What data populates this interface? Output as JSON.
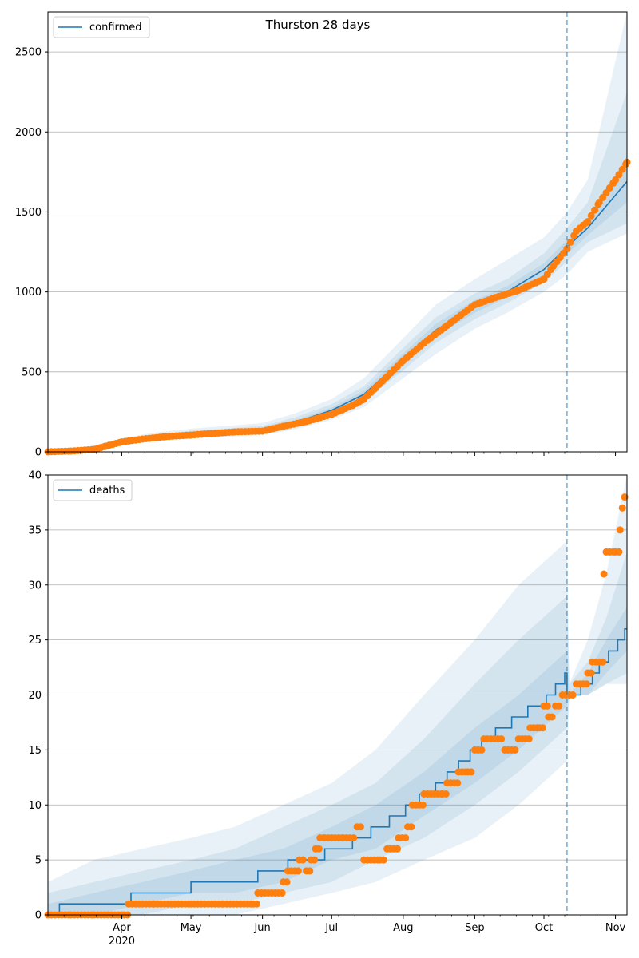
{
  "chart_data": [
    {
      "type": "line",
      "title": "Thurston 28 days",
      "legend": {
        "label": "confirmed",
        "placement": "top-left"
      },
      "xlim": [
        "2020-02-29",
        "2020-11-06"
      ],
      "ylim": [
        0,
        2750
      ],
      "yticks": [
        0,
        500,
        1000,
        1500,
        2000,
        2500
      ],
      "grid": "horizontal",
      "forecast_start": "2020-10-11",
      "colors": {
        "model": "#1f77b4",
        "observed": "#ff7f0e",
        "band": "#1f77b4"
      },
      "model": {
        "x": [
          "2020-02-29",
          "2020-03-15",
          "2020-04-01",
          "2020-04-15",
          "2020-05-01",
          "2020-05-15",
          "2020-06-01",
          "2020-06-15",
          "2020-07-01",
          "2020-07-15",
          "2020-08-01",
          "2020-08-15",
          "2020-09-01",
          "2020-09-15",
          "2020-10-01",
          "2020-10-11",
          "2020-10-20",
          "2020-11-06"
        ],
        "y": [
          0,
          10,
          60,
          95,
          115,
          125,
          140,
          185,
          260,
          360,
          580,
          760,
          910,
          1000,
          1140,
          1280,
          1400,
          1690
        ]
      },
      "bands": [
        {
          "x": [
            "2020-02-29",
            "2020-03-15",
            "2020-04-01",
            "2020-04-15",
            "2020-05-01",
            "2020-05-15",
            "2020-06-01",
            "2020-06-15",
            "2020-07-01",
            "2020-07-15",
            "2020-08-01",
            "2020-08-15",
            "2020-09-01",
            "2020-09-15",
            "2020-10-01",
            "2020-10-11",
            "2020-10-20",
            "2020-11-06"
          ],
          "lower": [
            0,
            2,
            40,
            70,
            90,
            95,
            105,
            140,
            200,
            280,
            460,
            610,
            770,
            870,
            1000,
            1110,
            1250,
            1365
          ],
          "upper": [
            0,
            25,
            85,
            120,
            145,
            160,
            180,
            240,
            330,
            460,
            710,
            920,
            1080,
            1200,
            1340,
            1500,
            1700,
            2750
          ]
        },
        {
          "x": [
            "2020-02-29",
            "2020-03-15",
            "2020-04-01",
            "2020-04-15",
            "2020-05-01",
            "2020-05-15",
            "2020-06-01",
            "2020-06-15",
            "2020-07-01",
            "2020-07-15",
            "2020-08-01",
            "2020-08-15",
            "2020-09-01",
            "2020-09-15",
            "2020-10-01",
            "2020-10-11",
            "2020-10-20",
            "2020-11-06"
          ],
          "lower": [
            0,
            5,
            48,
            80,
            100,
            107,
            120,
            158,
            225,
            315,
            510,
            680,
            830,
            930,
            1060,
            1190,
            1310,
            1430
          ],
          "upper": [
            0,
            18,
            75,
            110,
            132,
            145,
            162,
            215,
            298,
            410,
            650,
            840,
            990,
            1080,
            1240,
            1400,
            1560,
            2250
          ]
        },
        {
          "x": [
            "2020-02-29",
            "2020-03-15",
            "2020-04-01",
            "2020-04-15",
            "2020-05-01",
            "2020-05-15",
            "2020-06-01",
            "2020-06-15",
            "2020-07-01",
            "2020-07-15",
            "2020-08-01",
            "2020-08-15",
            "2020-09-01",
            "2020-09-15",
            "2020-10-01",
            "2020-10-11",
            "2020-10-20",
            "2020-11-06"
          ],
          "lower": [
            0,
            7,
            54,
            87,
            108,
            116,
            130,
            172,
            243,
            337,
            545,
            720,
            870,
            965,
            1100,
            1235,
            1355,
            1560
          ],
          "upper": [
            0,
            13,
            66,
            102,
            122,
            134,
            150,
            198,
            277,
            383,
            615,
            800,
            950,
            1035,
            1180,
            1325,
            1445,
            1850
          ]
        }
      ],
      "observed": {
        "x": [
          "2020-02-29",
          "2020-03-10",
          "2020-03-20",
          "2020-03-25",
          "2020-04-01",
          "2020-04-10",
          "2020-04-20",
          "2020-05-01",
          "2020-05-10",
          "2020-05-20",
          "2020-06-01",
          "2020-06-10",
          "2020-06-20",
          "2020-07-01",
          "2020-07-10",
          "2020-07-15",
          "2020-07-20",
          "2020-07-25",
          "2020-08-01",
          "2020-08-10",
          "2020-08-20",
          "2020-09-01",
          "2020-09-10",
          "2020-09-20",
          "2020-10-01",
          "2020-10-05",
          "2020-10-11",
          "2020-10-15",
          "2020-10-20",
          "2020-10-25",
          "2020-11-01",
          "2020-11-06"
        ],
        "y": [
          0,
          5,
          15,
          35,
          62,
          80,
          95,
          105,
          115,
          125,
          130,
          160,
          190,
          235,
          290,
          330,
          400,
          470,
          570,
          680,
          790,
          920,
          965,
          1010,
          1080,
          1160,
          1270,
          1380,
          1440,
          1560,
          1700,
          1810
        ]
      }
    },
    {
      "type": "line",
      "title": "",
      "legend": {
        "label": "deaths",
        "placement": "top-left"
      },
      "xlim": [
        "2020-02-29",
        "2020-11-06"
      ],
      "ylim": [
        0,
        40
      ],
      "yticks": [
        0,
        5,
        10,
        15,
        20,
        25,
        30,
        35,
        40
      ],
      "grid": "horizontal",
      "forecast_start": "2020-10-11",
      "colors": {
        "model": "#1f77b4",
        "observed": "#ff7f0e",
        "band": "#1f77b4"
      },
      "xticks": [
        {
          "date": "2020-04-01",
          "label": "Apr",
          "sublabel": "2020"
        },
        {
          "date": "2020-05-01",
          "label": "May"
        },
        {
          "date": "2020-06-01",
          "label": "Jun"
        },
        {
          "date": "2020-07-01",
          "label": "Jul"
        },
        {
          "date": "2020-08-01",
          "label": "Aug"
        },
        {
          "date": "2020-09-01",
          "label": "Sep"
        },
        {
          "date": "2020-10-01",
          "label": "Oct"
        },
        {
          "date": "2020-11-01",
          "label": "Nov"
        }
      ],
      "model_steps": [
        {
          "x": "2020-02-29",
          "y": 0
        },
        {
          "x": "2020-03-05",
          "y": 1
        },
        {
          "x": "2020-04-05",
          "y": 2
        },
        {
          "x": "2020-05-01",
          "y": 3
        },
        {
          "x": "2020-05-30",
          "y": 4
        },
        {
          "x": "2020-06-12",
          "y": 5
        },
        {
          "x": "2020-06-28",
          "y": 6
        },
        {
          "x": "2020-07-10",
          "y": 7
        },
        {
          "x": "2020-07-18",
          "y": 8
        },
        {
          "x": "2020-07-26",
          "y": 9
        },
        {
          "x": "2020-08-02",
          "y": 10
        },
        {
          "x": "2020-08-08",
          "y": 11
        },
        {
          "x": "2020-08-15",
          "y": 12
        },
        {
          "x": "2020-08-20",
          "y": 13
        },
        {
          "x": "2020-08-25",
          "y": 14
        },
        {
          "x": "2020-08-30",
          "y": 15
        },
        {
          "x": "2020-09-04",
          "y": 16
        },
        {
          "x": "2020-09-10",
          "y": 17
        },
        {
          "x": "2020-09-17",
          "y": 18
        },
        {
          "x": "2020-09-24",
          "y": 19
        },
        {
          "x": "2020-10-02",
          "y": 20
        },
        {
          "x": "2020-10-06",
          "y": 21
        },
        {
          "x": "2020-10-10",
          "y": 22
        },
        {
          "x": "2020-10-11",
          "y": 20
        },
        {
          "x": "2020-10-17",
          "y": 21
        },
        {
          "x": "2020-10-22",
          "y": 22
        },
        {
          "x": "2020-10-25",
          "y": 23
        },
        {
          "x": "2020-10-29",
          "y": 24
        },
        {
          "x": "2020-11-02",
          "y": 25
        },
        {
          "x": "2020-11-05",
          "y": 26
        },
        {
          "x": "2020-11-06",
          "y": 26
        }
      ],
      "bands": [
        {
          "x": [
            "2020-02-29",
            "2020-03-20",
            "2020-04-10",
            "2020-05-01",
            "2020-05-20",
            "2020-06-10",
            "2020-07-01",
            "2020-07-20",
            "2020-08-10",
            "2020-09-01",
            "2020-09-20",
            "2020-10-11",
            "2020-10-12",
            "2020-10-20",
            "2020-10-28",
            "2020-11-06"
          ],
          "lower": [
            0,
            0,
            0,
            0,
            0,
            1,
            2,
            3,
            5,
            7,
            10,
            14,
            20,
            20,
            21,
            21
          ],
          "upper": [
            3,
            5,
            6,
            7,
            8,
            10,
            12,
            15,
            20,
            25,
            30,
            34,
            21,
            25,
            31,
            40
          ]
        },
        {
          "x": [
            "2020-02-29",
            "2020-03-20",
            "2020-04-10",
            "2020-05-01",
            "2020-05-20",
            "2020-06-10",
            "2020-07-01",
            "2020-07-20",
            "2020-08-10",
            "2020-09-01",
            "2020-09-20",
            "2020-10-11",
            "2020-10-12",
            "2020-10-20",
            "2020-10-28",
            "2020-11-06"
          ],
          "lower": [
            0,
            0,
            0,
            1,
            1,
            2,
            3,
            5,
            7,
            10,
            13,
            17,
            20,
            20,
            21,
            22
          ],
          "upper": [
            2,
            3,
            4,
            5,
            6,
            8,
            10,
            12,
            16,
            21,
            25,
            29,
            21,
            23,
            27,
            33
          ]
        },
        {
          "x": [
            "2020-02-29",
            "2020-03-20",
            "2020-04-10",
            "2020-05-01",
            "2020-05-20",
            "2020-06-10",
            "2020-07-01",
            "2020-07-20",
            "2020-08-10",
            "2020-09-01",
            "2020-09-20",
            "2020-10-11",
            "2020-10-12",
            "2020-10-20",
            "2020-10-28",
            "2020-11-06"
          ],
          "lower": [
            0,
            0,
            1,
            2,
            2,
            3,
            5,
            6,
            9,
            12,
            15,
            19,
            20,
            20,
            22,
            24
          ],
          "upper": [
            1,
            2,
            3,
            4,
            5,
            6,
            8,
            10,
            13,
            17,
            20,
            24,
            20,
            22,
            25,
            28
          ]
        }
      ],
      "observed": {
        "x": [
          "2020-02-29",
          "2020-03-10",
          "2020-03-20",
          "2020-04-02",
          "2020-04-04",
          "2020-04-15",
          "2020-05-01",
          "2020-05-15",
          "2020-05-28",
          "2020-05-30",
          "2020-06-05",
          "2020-06-10",
          "2020-06-12",
          "2020-06-17",
          "2020-06-20",
          "2020-06-22",
          "2020-06-24",
          "2020-06-26",
          "2020-06-28",
          "2020-07-01",
          "2020-07-06",
          "2020-07-12",
          "2020-07-15",
          "2020-07-22",
          "2020-07-25",
          "2020-07-30",
          "2020-08-03",
          "2020-08-05",
          "2020-08-10",
          "2020-08-18",
          "2020-08-20",
          "2020-08-25",
          "2020-08-29",
          "2020-09-01",
          "2020-09-05",
          "2020-09-08",
          "2020-09-14",
          "2020-09-20",
          "2020-09-25",
          "2020-09-29",
          "2020-10-01",
          "2020-10-03",
          "2020-10-06",
          "2020-10-09",
          "2020-10-12",
          "2020-10-15",
          "2020-10-20",
          "2020-10-22",
          "2020-10-25",
          "2020-10-27",
          "2020-10-28",
          "2020-11-01",
          "2020-11-03",
          "2020-11-04",
          "2020-11-05"
        ],
        "y": [
          0,
          0,
          0,
          0,
          1,
          1,
          1,
          1,
          1,
          2,
          2,
          3,
          4,
          5,
          4,
          5,
          6,
          7,
          7,
          7,
          7,
          8,
          5,
          5,
          6,
          7,
          8,
          10,
          11,
          11,
          12,
          13,
          13,
          15,
          16,
          16,
          15,
          16,
          17,
          17,
          19,
          18,
          19,
          20,
          20,
          21,
          22,
          23,
          23,
          31,
          33,
          33,
          35,
          37,
          38
        ]
      }
    }
  ]
}
